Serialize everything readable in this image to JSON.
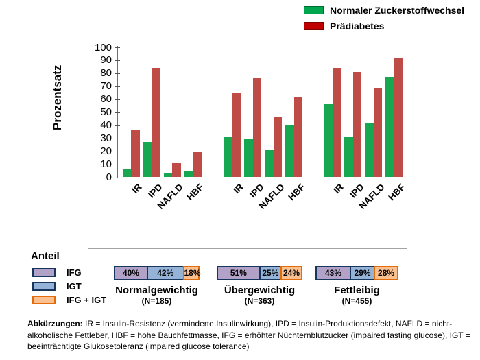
{
  "legend": {
    "items": [
      {
        "name": "normal-glucose-swatch",
        "label": "Normaler Zuckerstoffwechsel",
        "color": "#00a64e"
      },
      {
        "name": "prediabetes-swatch",
        "label": "Prädiabetes",
        "color": "#c00000"
      }
    ]
  },
  "chart_data": {
    "type": "bar",
    "title": "",
    "xlabel": "",
    "ylabel": "Prozentsatz",
    "ylim": [
      0,
      100
    ],
    "ytick_step": 10,
    "grid": false,
    "legend_position": "top-right",
    "series_names": [
      "Normaler Zuckerstoffwechsel",
      "Prädiabetes"
    ],
    "series_colors": [
      "#16a750",
      "#bf4b47"
    ],
    "groups": [
      {
        "label": "Normalgewichtig",
        "n_label": "(N=185)",
        "categories": [
          "IR",
          "IPD",
          "NAFLD",
          "HBF"
        ],
        "values": [
          [
            6,
            27,
            3,
            5
          ],
          [
            36,
            84,
            11,
            20
          ]
        ]
      },
      {
        "label": "Übergewichtig",
        "n_label": "(N=363)",
        "categories": [
          "IR",
          "IPD",
          "NAFLD",
          "HBF"
        ],
        "values": [
          [
            31,
            30,
            21,
            40
          ],
          [
            65,
            76,
            46,
            62
          ]
        ]
      },
      {
        "label": "Fettleibig",
        "n_label": "(N=455)",
        "categories": [
          "IR",
          "IPD",
          "NAFLD",
          "HBF"
        ],
        "values": [
          [
            56,
            31,
            42,
            77
          ],
          [
            84,
            81,
            69,
            92
          ]
        ]
      }
    ]
  },
  "anteil": {
    "heading": "Anteil",
    "legend": [
      {
        "label": "IFG",
        "fill": "#b3a2c7",
        "border": "#17365d"
      },
      {
        "label": "IGT",
        "fill": "#95b3d7",
        "border": "#17365d"
      },
      {
        "label": "IFG + IGT",
        "fill": "#fac090",
        "border": "#e36c0a"
      }
    ],
    "bars": [
      {
        "title": "Normalgewichtig",
        "n": "(N=185)",
        "segments": [
          {
            "label": "40%",
            "value": 40
          },
          {
            "label": "42%",
            "value": 42
          },
          {
            "label": "18%",
            "value": 18
          }
        ]
      },
      {
        "title": "Übergewichtig",
        "n": "(N=363)",
        "segments": [
          {
            "label": "51%",
            "value": 51
          },
          {
            "label": "25%",
            "value": 25
          },
          {
            "label": "24%",
            "value": 24
          }
        ]
      },
      {
        "title": "Fettleibig",
        "n": "(N=455)",
        "segments": [
          {
            "label": "43%",
            "value": 43
          },
          {
            "label": "29%",
            "value": 29
          },
          {
            "label": "28%",
            "value": 28
          }
        ]
      }
    ]
  },
  "footer": {
    "label": "Abkürzungen:",
    "text": " IR = Insulin-Resistenz (verminderte Insulinwirkung), IPD = Insulin-Produktionsdefekt, NAFLD = nicht-alkoholische Fettleber, HBF = hohe Bauchfettmasse, IFG = erhöhter Nüchternblutzucker (impaired fasting glucose), IGT = beeinträchtigte Glukosetoleranz (impaired glucose tolerance)"
  }
}
